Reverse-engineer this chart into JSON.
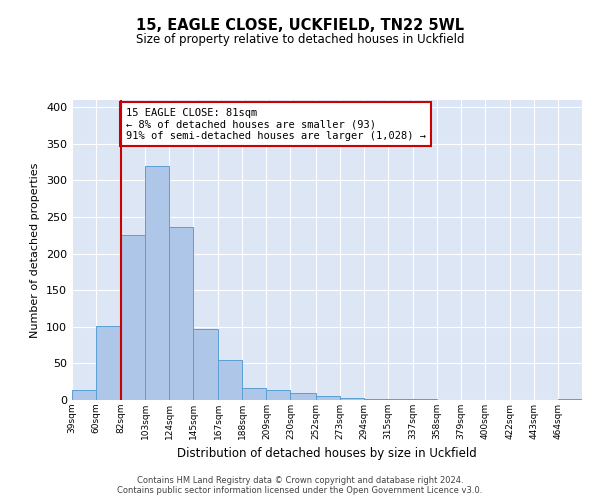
{
  "title": "15, EAGLE CLOSE, UCKFIELD, TN22 5WL",
  "subtitle": "Size of property relative to detached houses in Uckfield",
  "xlabel": "Distribution of detached houses by size in Uckfield",
  "ylabel": "Number of detached properties",
  "bar_color": "#aec6e8",
  "bar_edge_color": "#5a9fd4",
  "background_color": "#dce6f5",
  "grid_color": "#ffffff",
  "bins": [
    39,
    60,
    82,
    103,
    124,
    145,
    167,
    188,
    209,
    230,
    252,
    273,
    294,
    315,
    337,
    358,
    379,
    400,
    422,
    443,
    464,
    485
  ],
  "counts": [
    13,
    101,
    225,
    320,
    237,
    97,
    54,
    17,
    14,
    9,
    5,
    3,
    2,
    1,
    1,
    0,
    0,
    0,
    0,
    0,
    2
  ],
  "tick_labels": [
    "39sqm",
    "60sqm",
    "82sqm",
    "103sqm",
    "124sqm",
    "145sqm",
    "167sqm",
    "188sqm",
    "209sqm",
    "230sqm",
    "252sqm",
    "273sqm",
    "294sqm",
    "315sqm",
    "337sqm",
    "358sqm",
    "379sqm",
    "400sqm",
    "422sqm",
    "443sqm",
    "464sqm"
  ],
  "vline_x": 82,
  "vline_color": "#cc0000",
  "annotation_line1": "15 EAGLE CLOSE: 81sqm",
  "annotation_line2": "← 8% of detached houses are smaller (93)",
  "annotation_line3": "91% of semi-detached houses are larger (1,028) →",
  "annotation_box_color": "#cc0000",
  "ylim": [
    0,
    410
  ],
  "yticks": [
    0,
    50,
    100,
    150,
    200,
    250,
    300,
    350,
    400
  ],
  "footer1": "Contains HM Land Registry data © Crown copyright and database right 2024.",
  "footer2": "Contains public sector information licensed under the Open Government Licence v3.0."
}
